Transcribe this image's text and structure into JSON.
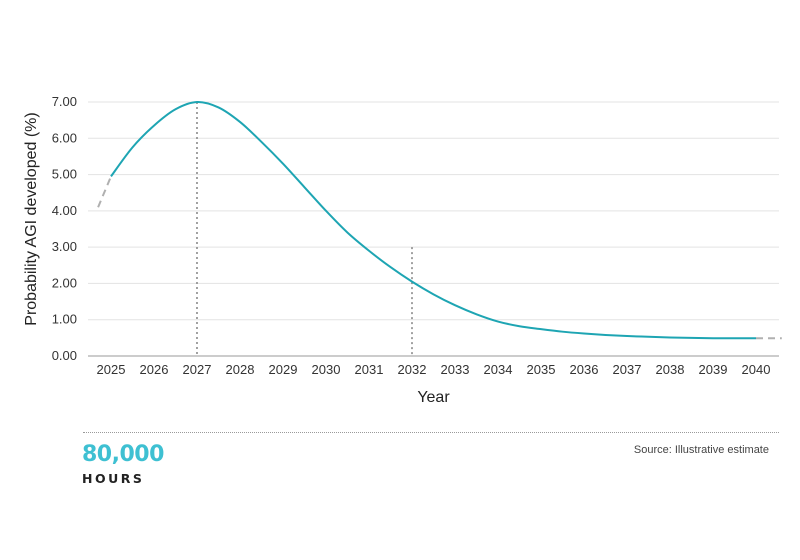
{
  "chart_data": {
    "type": "line",
    "title": "",
    "xlabel": "Year",
    "ylabel": "Probability AGI developed (%)",
    "xlim": [
      2024.7,
      2040.6
    ],
    "ylim": [
      0,
      7
    ],
    "x_ticks": [
      "2025",
      "2026",
      "2027",
      "2028",
      "2029",
      "2030",
      "2031",
      "2032",
      "2033",
      "2034",
      "2035",
      "2036",
      "2037",
      "2038",
      "2039",
      "2040"
    ],
    "y_ticks": [
      "0.00",
      "1.00",
      "2.00",
      "3.00",
      "4.00",
      "5.00",
      "6.00",
      "7.00"
    ],
    "grid": "horizontal",
    "series": [
      {
        "color": "#1ea5b3",
        "x": [
          2025.0,
          2025.5,
          2026.0,
          2026.5,
          2027.0,
          2027.5,
          2028.0,
          2028.5,
          2029.0,
          2029.5,
          2030.0,
          2030.5,
          2031.0,
          2031.5,
          2032.0,
          2032.5,
          2033.0,
          2033.5,
          2034.0,
          2034.5,
          2035.0,
          2035.5,
          2036.0,
          2036.5,
          2037.0,
          2037.5,
          2038.0,
          2038.5,
          2039.0,
          2039.5,
          2040.0
        ],
        "y": [
          4.95,
          5.75,
          6.35,
          6.8,
          7.0,
          6.85,
          6.45,
          5.9,
          5.3,
          4.65,
          4.0,
          3.4,
          2.9,
          2.45,
          2.05,
          1.7,
          1.4,
          1.15,
          0.95,
          0.82,
          0.74,
          0.67,
          0.62,
          0.58,
          0.55,
          0.53,
          0.51,
          0.5,
          0.49,
          0.49,
          0.49
        ]
      }
    ],
    "extensions": [
      {
        "style": "dashed",
        "color": "#b0b0b0",
        "x": [
          2024.7,
          2025.0
        ],
        "y": [
          4.1,
          4.95
        ]
      },
      {
        "style": "dashed",
        "color": "#b0b0b0",
        "x": [
          2040.0,
          2040.6
        ],
        "y": [
          0.49,
          0.49
        ]
      }
    ],
    "reference_lines": [
      {
        "x": 2027,
        "y": 7.0,
        "style": "dotted"
      },
      {
        "x": 2032,
        "y": 3.0,
        "style": "dotted"
      }
    ]
  },
  "footer": {
    "logo_number": "80,000",
    "logo_word": "HOURS",
    "source": "Source: Illustrative estimate"
  },
  "colors": {
    "line": "#1ea5b3",
    "logo_accent": "#3ec0d2"
  }
}
